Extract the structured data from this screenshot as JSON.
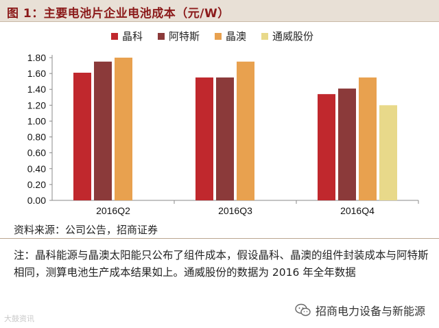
{
  "title": "图 1：主要电池片企业电池成本（元/W）",
  "chart_data": {
    "type": "bar",
    "title": "主要电池片企业电池成本（元/W）",
    "categories": [
      "2016Q2",
      "2016Q3",
      "2016Q4"
    ],
    "series": [
      {
        "name": "晶科",
        "color": "#c0282d",
        "values": [
          1.61,
          1.55,
          1.34
        ]
      },
      {
        "name": "阿特斯",
        "color": "#8b3a3a",
        "values": [
          1.75,
          1.55,
          1.41
        ]
      },
      {
        "name": "晶澳",
        "color": "#e8a14f",
        "values": [
          1.8,
          1.75,
          1.55
        ]
      },
      {
        "name": "通威股份",
        "color": "#e8d98a",
        "values": [
          null,
          null,
          1.2
        ]
      }
    ],
    "yticks": [
      "0.00",
      "0.20",
      "0.40",
      "0.60",
      "0.80",
      "1.00",
      "1.20",
      "1.40",
      "1.60",
      "1.80"
    ],
    "ylim": [
      0,
      1.8
    ],
    "legend_position": "top",
    "grid": false
  },
  "source": "资料来源：公司公告，招商证券",
  "note": "注：晶科能源与晶澳太阳能只公布了组件成本，假设晶科、晶澳的组件封装成本与阿特斯相同，测算电池生产成本结果如上。通威股份的数据为 2016 年全年数据",
  "watermark_left": "大鼓资讯",
  "watermark_right": "招商电力设备与新能源"
}
